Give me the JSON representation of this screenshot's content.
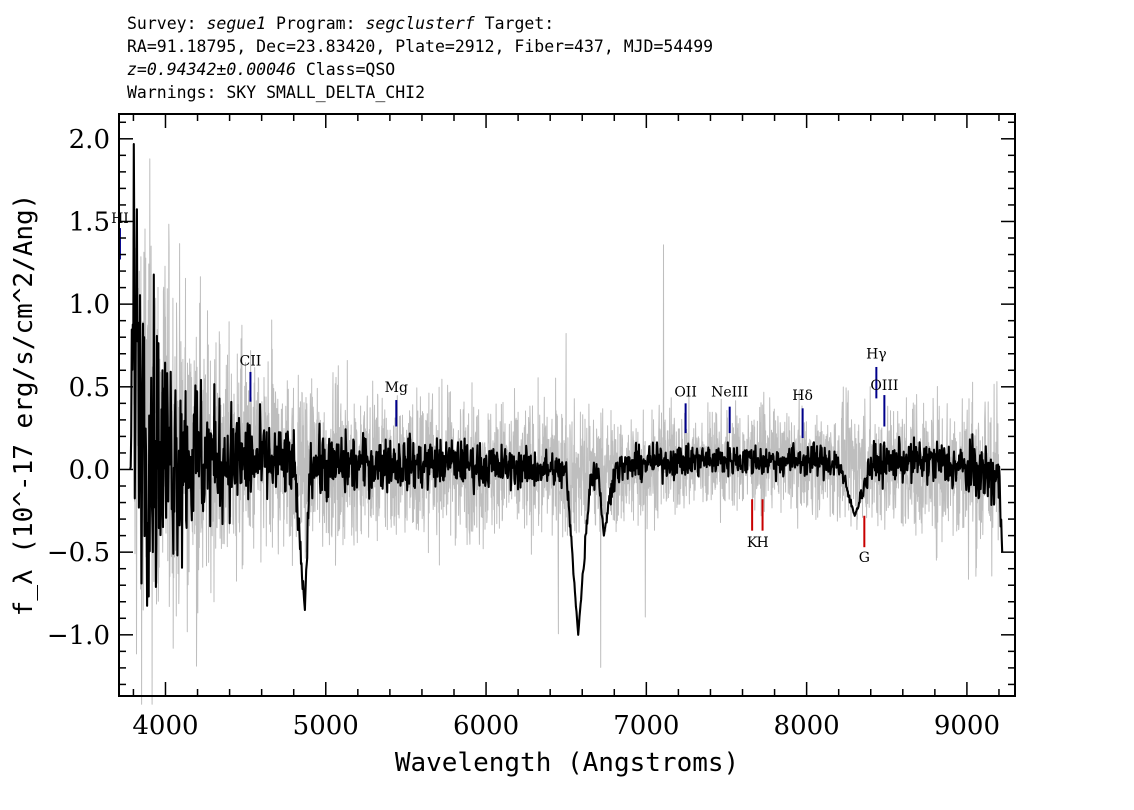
{
  "header": {
    "survey_label": "Survey:",
    "survey": "segue1",
    "program_label": "Program:",
    "program": "segclusterf",
    "target_label": "Target:",
    "line2": "RA=91.18795, Dec=23.83420, Plate=2912, Fiber=437, MJD=54499",
    "redshift": "z=0.94342±0.00046",
    "class": "Class=QSO",
    "warnings": "Warnings: SKY SMALL_DELTA_CHI2"
  },
  "chart_data": {
    "type": "line",
    "xlabel": "Wavelength (Angstroms)",
    "ylabel": "f_λ (10^-17 erg/s/cm^2/Ang)",
    "xlim": [
      3710,
      9300
    ],
    "ylim": [
      -1.37,
      2.15
    ],
    "xticks": [
      4000,
      5000,
      6000,
      7000,
      8000,
      9000
    ],
    "yticks": [
      -1.0,
      -0.5,
      0.0,
      0.5,
      1.0,
      1.5,
      2.0
    ],
    "ytick_labels": [
      "−1.0",
      "−0.5",
      "0.0",
      "0.5",
      "1.0",
      "1.5",
      "2.0"
    ],
    "series": [
      {
        "color": "#bebebe",
        "x": [
          3800,
          3900,
          4000,
          4100,
          4200,
          4300,
          4400,
          4500,
          4600,
          4700,
          4800,
          4900,
          5000,
          5200,
          5400,
          5600,
          5800,
          6000,
          6200,
          6400,
          6600,
          6800,
          7000,
          7200,
          7400,
          7600,
          7800,
          8000,
          8200,
          8400,
          8600,
          8800,
          9000,
          9200
        ],
        "y": [
          0.3,
          0.2,
          0.15,
          0.12,
          0.1,
          0.09,
          0.08,
          0.07,
          0.06,
          0.05,
          0.04,
          0.04,
          0.03,
          0.03,
          0.03,
          0.02,
          0.02,
          0.01,
          0.0,
          0.0,
          -0.03,
          -0.02,
          0.02,
          0.05,
          0.06,
          0.06,
          0.06,
          0.05,
          0.03,
          0.03,
          0.02,
          0.01,
          0.0,
          -0.05
        ],
        "noise": [
          0.9,
          0.75,
          0.6,
          0.5,
          0.45,
          0.4,
          0.36,
          0.33,
          0.31,
          0.29,
          0.27,
          0.26,
          0.25,
          0.24,
          0.23,
          0.22,
          0.22,
          0.21,
          0.2,
          0.2,
          0.2,
          0.18,
          0.17,
          0.16,
          0.16,
          0.15,
          0.15,
          0.15,
          0.17,
          0.19,
          0.2,
          0.22,
          0.24,
          0.28
        ]
      },
      {
        "color": "#000000",
        "x": [
          3780,
          3800,
          3850,
          3900,
          3950,
          4000,
          4100,
          4200,
          4300,
          4400,
          4500,
          4600,
          4700,
          4800,
          4870,
          4900,
          5000,
          5200,
          5400,
          5600,
          5800,
          6000,
          6200,
          6400,
          6500,
          6575,
          6650,
          6700,
          6735,
          6800,
          7000,
          7200,
          7400,
          7600,
          7800,
          8000,
          8200,
          8300,
          8400,
          8600,
          8800,
          9000,
          9200,
          9220
        ],
        "y": [
          -0.3,
          1.1,
          0.4,
          0.2,
          0.15,
          0.1,
          0.1,
          0.08,
          0.05,
          0.07,
          0.05,
          0.04,
          0.03,
          0.03,
          -0.85,
          0.04,
          0.02,
          0.03,
          0.04,
          0.03,
          0.05,
          0.02,
          0.01,
          0.0,
          -0.02,
          -1.0,
          -0.05,
          0.0,
          -0.4,
          0.0,
          0.04,
          0.05,
          0.06,
          0.06,
          0.05,
          0.06,
          0.04,
          -0.28,
          0.03,
          0.05,
          0.05,
          0.0,
          -0.05,
          -0.5
        ],
        "noise": [
          0.2,
          0.5,
          0.5,
          0.45,
          0.4,
          0.35,
          0.3,
          0.25,
          0.2,
          0.17,
          0.15,
          0.13,
          0.12,
          0.11,
          0.0,
          0.1,
          0.1,
          0.09,
          0.08,
          0.08,
          0.07,
          0.07,
          0.06,
          0.06,
          0.05,
          0.0,
          0.05,
          0.05,
          0.0,
          0.05,
          0.05,
          0.05,
          0.05,
          0.05,
          0.05,
          0.05,
          0.05,
          0.0,
          0.06,
          0.06,
          0.07,
          0.08,
          0.1,
          0.0
        ]
      }
    ],
    "emission_lines": [
      {
        "label": "CII",
        "x": 4530,
        "y1": 0.41,
        "y2": 0.59,
        "label_y": 0.63,
        "color": "#00008b"
      },
      {
        "label": "Mg",
        "x": 5440,
        "y1": 0.26,
        "y2": 0.42,
        "label_y": 0.47,
        "color": "#00008b"
      },
      {
        "label": "OII",
        "x": 7245,
        "y1": 0.22,
        "y2": 0.4,
        "label_y": 0.44,
        "color": "#00008b"
      },
      {
        "label": "NeIII",
        "x": 7520,
        "y1": 0.22,
        "y2": 0.38,
        "label_y": 0.44,
        "color": "#00008b"
      },
      {
        "label": "Hδ",
        "x": 7975,
        "y1": 0.19,
        "y2": 0.37,
        "label_y": 0.42,
        "color": "#00008b"
      },
      {
        "label": "Hγ",
        "x": 8435,
        "y1": 0.43,
        "y2": 0.62,
        "label_y": 0.67,
        "color": "#00008b"
      },
      {
        "label": "OIII",
        "x": 8485,
        "y1": 0.26,
        "y2": 0.45,
        "label_y": 0.48,
        "color": "#00008b"
      },
      {
        "label": "HI",
        "x": 3716,
        "y1": 1.27,
        "y2": 1.46,
        "label_y": 1.49,
        "color": "#00008b"
      }
    ],
    "absorption_lines": [
      {
        "label": "K",
        "x": 7660,
        "y1": -0.37,
        "y2": -0.18,
        "label_y": -0.47,
        "color": "#c80000"
      },
      {
        "label": "H",
        "x": 7725,
        "y1": -0.37,
        "y2": -0.18,
        "label_y": -0.47,
        "color": "#c80000"
      },
      {
        "label": "G",
        "x": 8360,
        "y1": -0.47,
        "y2": -0.28,
        "label_y": -0.56,
        "color": "#c80000"
      }
    ]
  }
}
